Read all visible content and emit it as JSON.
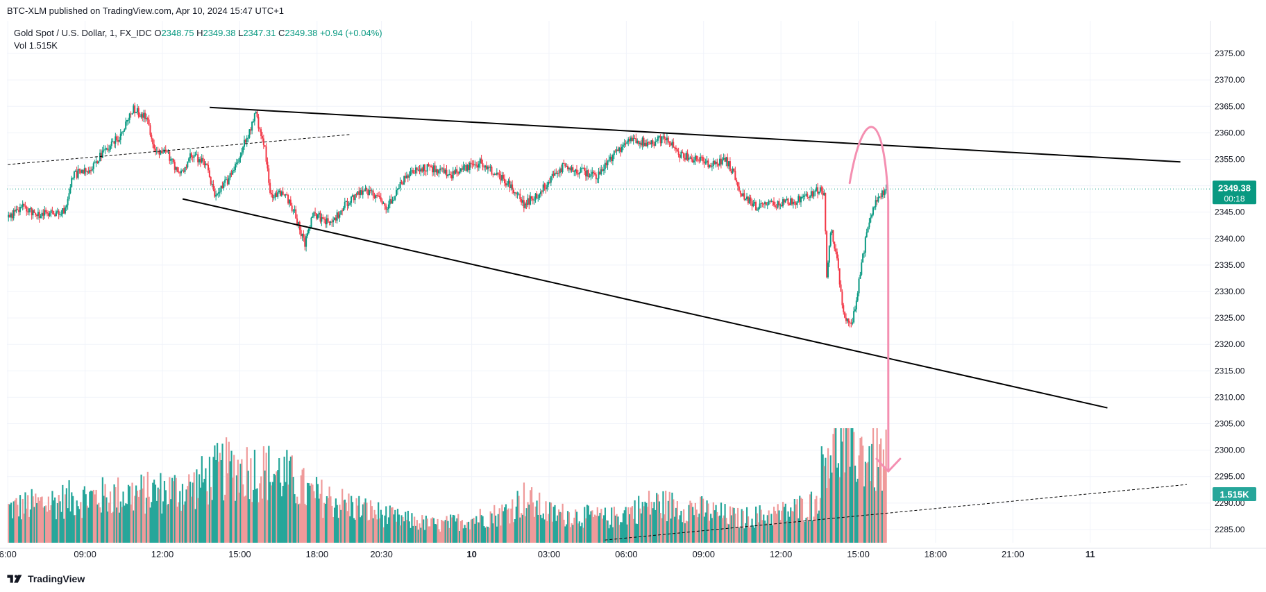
{
  "header": {
    "publisher_line": "BTC-XLM published on TradingView.com, Apr 10, 2024 15:47 UTC+1"
  },
  "legend": {
    "symbol": "Gold Spot / U.S. Dollar, 1, FX_IDC",
    "o_label": "O",
    "o_value": "2348.75",
    "h_label": "H",
    "h_value": "2349.38",
    "l_label": "L",
    "l_value": "2347.31",
    "c_label": "C",
    "c_value": "2349.38",
    "change": "+0.94 (+0.04%)",
    "vol_label": "Vol",
    "vol_value": "1.515K"
  },
  "price_badge": {
    "price": "2349.38",
    "countdown": "00:18"
  },
  "vol_badge": {
    "value": "1.515K"
  },
  "footer": {
    "brand": "TradingView"
  },
  "colors": {
    "up": "#089981",
    "down": "#f23645",
    "vol_up": "#26a69a",
    "vol_down": "#ef9a9a",
    "trendline": "#000000",
    "arrow": "#f48fb1",
    "grid": "#f0f3fa"
  },
  "chart_data": {
    "type": "candlestick",
    "symbol": "Gold Spot / U.S. Dollar",
    "interval": "1",
    "y_axis": {
      "ticks": [
        "2375.00",
        "2370.00",
        "2365.00",
        "2360.00",
        "2355.00",
        "2350.00",
        "2345.00",
        "2340.00",
        "2335.00",
        "2330.00",
        "2325.00",
        "2320.00",
        "2315.00",
        "2310.00",
        "2305.00",
        "2300.00",
        "2295.00",
        "2290.00",
        "2285.00"
      ],
      "range": [
        2282.5,
        2377.5
      ]
    },
    "x_axis": {
      "ticks": [
        {
          "label": "6:00",
          "t": 0
        },
        {
          "label": "09:00",
          "t": 180
        },
        {
          "label": "12:00",
          "t": 360
        },
        {
          "label": "15:00",
          "t": 540
        },
        {
          "label": "18:00",
          "t": 720
        },
        {
          "label": "20:30",
          "t": 870
        },
        {
          "label": "10",
          "t": 1080,
          "bold": true
        },
        {
          "label": "03:00",
          "t": 1260
        },
        {
          "label": "06:00",
          "t": 1440
        },
        {
          "label": "09:00",
          "t": 1620
        },
        {
          "label": "12:00",
          "t": 1800
        },
        {
          "label": "15:00",
          "t": 1980
        },
        {
          "label": "18:00",
          "t": 2160
        },
        {
          "label": "21:00",
          "t": 2340
        },
        {
          "label": "11",
          "t": 2520,
          "bold": true
        }
      ],
      "range_minutes_from_0600": [
        0,
        2800
      ]
    },
    "last_price": 2349.38,
    "price_anchors": [
      {
        "t": 0,
        "p": 2344
      },
      {
        "t": 30,
        "p": 2346
      },
      {
        "t": 70,
        "p": 2344.5
      },
      {
        "t": 130,
        "p": 2345
      },
      {
        "t": 150,
        "p": 2352
      },
      {
        "t": 185,
        "p": 2353
      },
      {
        "t": 230,
        "p": 2357
      },
      {
        "t": 260,
        "p": 2359.5
      },
      {
        "t": 290,
        "p": 2364.5
      },
      {
        "t": 320,
        "p": 2363
      },
      {
        "t": 340,
        "p": 2357
      },
      {
        "t": 370,
        "p": 2356
      },
      {
        "t": 400,
        "p": 2352
      },
      {
        "t": 425,
        "p": 2356
      },
      {
        "t": 460,
        "p": 2354
      },
      {
        "t": 480,
        "p": 2348
      },
      {
        "t": 510,
        "p": 2351
      },
      {
        "t": 545,
        "p": 2357
      },
      {
        "t": 575,
        "p": 2363.5
      },
      {
        "t": 595,
        "p": 2358
      },
      {
        "t": 610,
        "p": 2348
      },
      {
        "t": 640,
        "p": 2349
      },
      {
        "t": 665,
        "p": 2345
      },
      {
        "t": 690,
        "p": 2339
      },
      {
        "t": 710,
        "p": 2345
      },
      {
        "t": 750,
        "p": 2342.5
      },
      {
        "t": 790,
        "p": 2347
      },
      {
        "t": 830,
        "p": 2349
      },
      {
        "t": 860,
        "p": 2348
      },
      {
        "t": 880,
        "p": 2346
      },
      {
        "t": 920,
        "p": 2351
      },
      {
        "t": 960,
        "p": 2353.5
      },
      {
        "t": 1000,
        "p": 2353
      },
      {
        "t": 1030,
        "p": 2352
      },
      {
        "t": 1060,
        "p": 2353
      },
      {
        "t": 1100,
        "p": 2354.5
      },
      {
        "t": 1140,
        "p": 2352
      },
      {
        "t": 1170,
        "p": 2350
      },
      {
        "t": 1200,
        "p": 2346.5
      },
      {
        "t": 1230,
        "p": 2348
      },
      {
        "t": 1260,
        "p": 2351
      },
      {
        "t": 1290,
        "p": 2353.5
      },
      {
        "t": 1320,
        "p": 2353
      },
      {
        "t": 1370,
        "p": 2352
      },
      {
        "t": 1400,
        "p": 2355
      },
      {
        "t": 1450,
        "p": 2359
      },
      {
        "t": 1490,
        "p": 2358
      },
      {
        "t": 1530,
        "p": 2359
      },
      {
        "t": 1560,
        "p": 2356
      },
      {
        "t": 1600,
        "p": 2355
      },
      {
        "t": 1640,
        "p": 2354
      },
      {
        "t": 1670,
        "p": 2355
      },
      {
        "t": 1690,
        "p": 2352
      },
      {
        "t": 1710,
        "p": 2348
      },
      {
        "t": 1740,
        "p": 2346
      },
      {
        "t": 1780,
        "p": 2346.5
      },
      {
        "t": 1830,
        "p": 2347
      },
      {
        "t": 1860,
        "p": 2348
      },
      {
        "t": 1890,
        "p": 2349.5
      },
      {
        "t": 1900,
        "p": 2348
      },
      {
        "t": 1905,
        "p": 2332
      },
      {
        "t": 1915,
        "p": 2342
      },
      {
        "t": 1930,
        "p": 2335
      },
      {
        "t": 1945,
        "p": 2325
      },
      {
        "t": 1965,
        "p": 2324
      },
      {
        "t": 1980,
        "p": 2332
      },
      {
        "t": 2000,
        "p": 2342
      },
      {
        "t": 2015,
        "p": 2346
      },
      {
        "t": 2030,
        "p": 2348
      },
      {
        "t": 2044,
        "p": 2349.38
      }
    ],
    "volume_anchors": [
      {
        "t": 0,
        "v": 0.35
      },
      {
        "t": 150,
        "v": 0.45
      },
      {
        "t": 300,
        "v": 0.5
      },
      {
        "t": 420,
        "v": 0.55
      },
      {
        "t": 500,
        "v": 0.75
      },
      {
        "t": 560,
        "v": 0.75
      },
      {
        "t": 640,
        "v": 0.7
      },
      {
        "t": 700,
        "v": 0.5
      },
      {
        "t": 820,
        "v": 0.35
      },
      {
        "t": 900,
        "v": 0.25
      },
      {
        "t": 1000,
        "v": 0.18
      },
      {
        "t": 1150,
        "v": 0.3
      },
      {
        "t": 1200,
        "v": 0.45
      },
      {
        "t": 1260,
        "v": 0.3
      },
      {
        "t": 1400,
        "v": 0.25
      },
      {
        "t": 1500,
        "v": 0.4
      },
      {
        "t": 1600,
        "v": 0.35
      },
      {
        "t": 1700,
        "v": 0.25
      },
      {
        "t": 1800,
        "v": 0.3
      },
      {
        "t": 1880,
        "v": 0.4
      },
      {
        "t": 1905,
        "v": 1.0
      },
      {
        "t": 1950,
        "v": 1.0
      },
      {
        "t": 2000,
        "v": 0.9
      },
      {
        "t": 2044,
        "v": 0.8
      }
    ],
    "drawings": [
      {
        "type": "trendline",
        "style": "solid",
        "from": {
          "t": 470,
          "p": 2364.8
        },
        "to": {
          "t": 2730,
          "p": 2354.5
        }
      },
      {
        "type": "trendline",
        "style": "solid",
        "from": {
          "t": 407,
          "p": 2347.5
        },
        "to": {
          "t": 2560,
          "p": 2308
        }
      },
      {
        "type": "trendline",
        "style": "dashed",
        "from": {
          "t": 0,
          "p": 2354
        },
        "to": {
          "t": 800,
          "p": 2359.7
        }
      },
      {
        "type": "trendline",
        "style": "dashed",
        "from": {
          "t": 1390,
          "p": 2283
        },
        "to": {
          "t": 2745,
          "p": 2293.5
        }
      },
      {
        "type": "arrow_path",
        "style": "curved",
        "points": [
          {
            "t": 1960,
            "p": 2350.5
          },
          {
            "t": 1990,
            "p": 2357
          },
          {
            "t": 2040,
            "p": 2355
          },
          {
            "t": 2050,
            "p": 2296
          }
        ]
      }
    ]
  }
}
